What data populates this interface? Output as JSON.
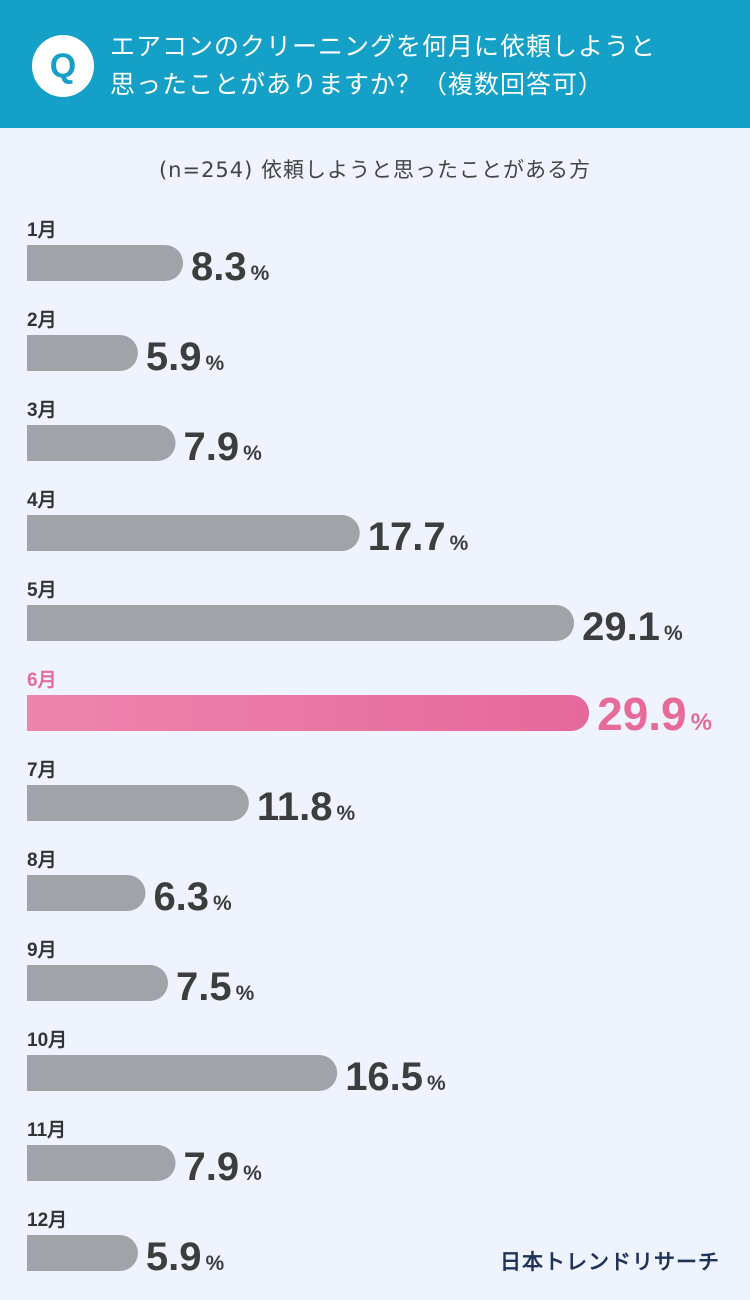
{
  "question": {
    "badge": "Q",
    "line1": "エアコンのクリーニングを何月に依頼しようと",
    "line2": "思ったことがありますか？（複数回答可）"
  },
  "subtitle": "(n=254) 依頼しようと思ったことがある方",
  "brand": "日本トレンドリサーチ",
  "colors": {
    "header": "#15a0c8",
    "background": "#eef3fd",
    "bar": "#a2a3a8",
    "highlight": "#e66b98",
    "value_text": "#3d3d3d",
    "label_text": "#333333"
  },
  "chart_data": {
    "type": "bar",
    "orientation": "horizontal",
    "categories": [
      "1月",
      "2月",
      "3月",
      "4月",
      "5月",
      "6月",
      "7月",
      "8月",
      "9月",
      "10月",
      "11月",
      "12月"
    ],
    "values": [
      8.3,
      5.9,
      7.9,
      17.7,
      29.1,
      29.9,
      11.8,
      6.3,
      7.5,
      16.5,
      7.9,
      5.9
    ],
    "unit": "%",
    "highlight": "6月",
    "title": "",
    "xlabel": "",
    "ylabel": ""
  }
}
